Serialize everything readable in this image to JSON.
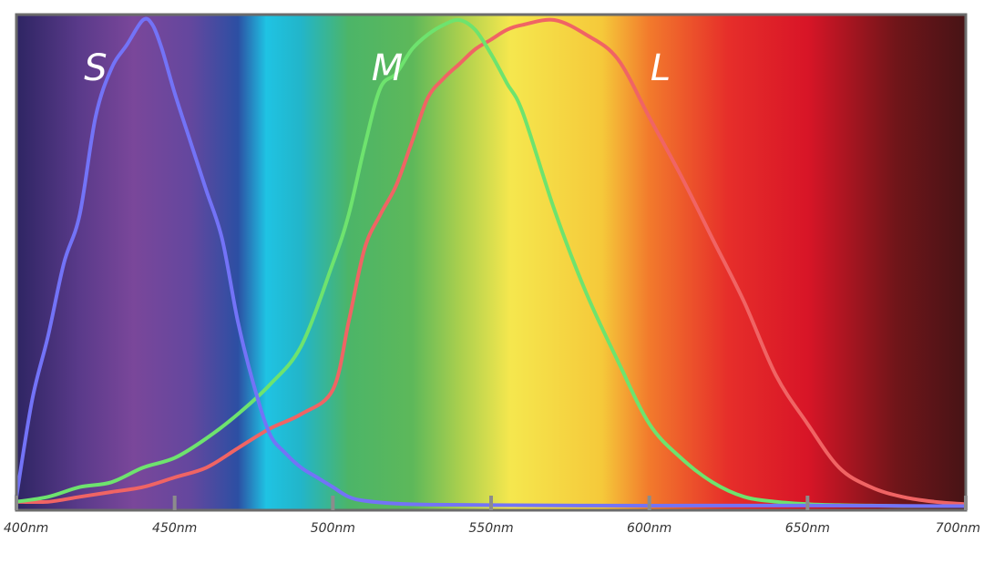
{
  "chart_data": {
    "type": "line",
    "title": "",
    "xlabel": "",
    "ylabel": "",
    "xlim": [
      400,
      700
    ],
    "ylim": [
      0,
      1
    ],
    "x_ticks": [
      400,
      450,
      500,
      550,
      600,
      650,
      700
    ],
    "x_tick_labels": [
      "400nm",
      "450nm",
      "500nm",
      "550nm",
      "600nm",
      "650nm",
      "700nm"
    ],
    "grid": false,
    "background": "visible spectrum gradient",
    "spectrum_stops": [
      {
        "nm": 400,
        "color": "#2e2563"
      },
      {
        "nm": 420,
        "color": "#5a3a8a"
      },
      {
        "nm": 437,
        "color": "#7a479a"
      },
      {
        "nm": 455,
        "color": "#64479e"
      },
      {
        "nm": 470,
        "color": "#2c4fa3"
      },
      {
        "nm": 479,
        "color": "#1fc3e3"
      },
      {
        "nm": 490,
        "color": "#22b5c9"
      },
      {
        "nm": 505,
        "color": "#4cb568"
      },
      {
        "nm": 525,
        "color": "#5db85a"
      },
      {
        "nm": 540,
        "color": "#a9cf4e"
      },
      {
        "nm": 556,
        "color": "#f5e74e"
      },
      {
        "nm": 585,
        "color": "#f5c93a"
      },
      {
        "nm": 600,
        "color": "#f27a2c"
      },
      {
        "nm": 625,
        "color": "#e62e2a"
      },
      {
        "nm": 650,
        "color": "#d81527"
      },
      {
        "nm": 678,
        "color": "#701519"
      },
      {
        "nm": 700,
        "color": "#471416"
      }
    ],
    "series": [
      {
        "name": "S",
        "color": "#7373f7",
        "x": [
          400,
          405,
          410,
          415,
          420,
          425,
          430,
          435,
          440,
          443,
          446,
          450,
          455,
          460,
          465,
          470,
          475,
          480,
          485,
          490,
          495,
          500,
          505,
          510,
          520,
          530,
          550,
          580,
          620,
          650,
          700
        ],
        "y": [
          0.02,
          0.22,
          0.35,
          0.5,
          0.6,
          0.8,
          0.9,
          0.95,
          1.0,
          0.99,
          0.94,
          0.85,
          0.75,
          0.65,
          0.55,
          0.38,
          0.25,
          0.15,
          0.11,
          0.08,
          0.06,
          0.04,
          0.02,
          0.012,
          0.006,
          0.004,
          0.003,
          0.002,
          0.002,
          0.002,
          0.001
        ]
      },
      {
        "name": "M",
        "color": "#6ee36e",
        "x": [
          400,
          410,
          420,
          430,
          440,
          450,
          460,
          470,
          480,
          490,
          500,
          505,
          510,
          515,
          520,
          525,
          530,
          535,
          540,
          545,
          550,
          555,
          560,
          570,
          580,
          590,
          600,
          610,
          620,
          630,
          640,
          650,
          660,
          670,
          680,
          690,
          700
        ],
        "y": [
          0.01,
          0.02,
          0.04,
          0.05,
          0.08,
          0.1,
          0.14,
          0.19,
          0.25,
          0.33,
          0.5,
          0.6,
          0.74,
          0.86,
          0.89,
          0.94,
          0.97,
          0.99,
          1.0,
          0.98,
          0.93,
          0.87,
          0.81,
          0.61,
          0.44,
          0.3,
          0.17,
          0.1,
          0.05,
          0.02,
          0.01,
          0.005,
          0.003,
          0.002,
          0.001,
          0.001,
          0.001
        ]
      },
      {
        "name": "L",
        "color": "#f06464",
        "x": [
          400,
          410,
          420,
          430,
          440,
          450,
          460,
          470,
          480,
          490,
          500,
          505,
          510,
          515,
          520,
          525,
          530,
          535,
          540,
          545,
          550,
          555,
          560,
          570,
          580,
          590,
          600,
          610,
          620,
          630,
          640,
          650,
          660,
          670,
          680,
          690,
          700
        ],
        "y": [
          0.01,
          0.01,
          0.02,
          0.03,
          0.04,
          0.06,
          0.08,
          0.12,
          0.16,
          0.19,
          0.24,
          0.38,
          0.53,
          0.6,
          0.66,
          0.75,
          0.84,
          0.88,
          0.91,
          0.94,
          0.96,
          0.98,
          0.99,
          1.0,
          0.97,
          0.92,
          0.8,
          0.68,
          0.55,
          0.42,
          0.27,
          0.17,
          0.08,
          0.04,
          0.02,
          0.01,
          0.005
        ]
      }
    ]
  }
}
